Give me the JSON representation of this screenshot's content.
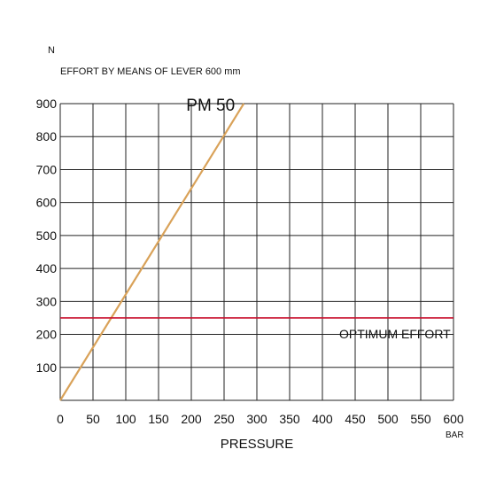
{
  "chart_data": {
    "type": "line",
    "y_unit": "N",
    "ylabel": "EFFORT BY MEANS OF LEVER 600 mm",
    "xlabel": "PRESSURE",
    "x_unit": "BAR",
    "xlim": [
      0,
      600
    ],
    "ylim": [
      0,
      900
    ],
    "x_ticks": [
      "0",
      "50",
      "100",
      "150",
      "200",
      "250",
      "300",
      "350",
      "400",
      "450",
      "500",
      "550",
      "600"
    ],
    "y_ticks": [
      "100",
      "200",
      "300",
      "400",
      "500",
      "600",
      "700",
      "800",
      "900"
    ],
    "grid": true,
    "series": [
      {
        "name": "PM 50",
        "color": "#d9a259",
        "points": [
          [
            0,
            0
          ],
          [
            280,
            900
          ]
        ]
      }
    ],
    "reference_line": {
      "label": "OPTIMUM EFFORT",
      "y": 250,
      "color": "#c8102e"
    }
  }
}
